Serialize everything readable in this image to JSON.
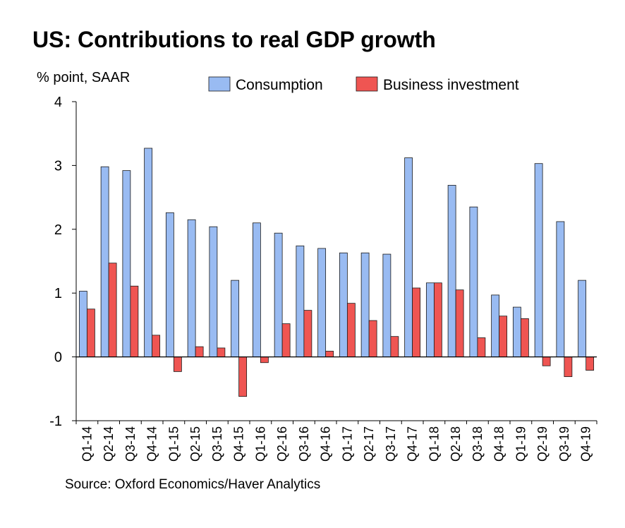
{
  "chart_data": {
    "type": "bar",
    "title": "US: Contributions to real GDP growth",
    "ylabel": "% point, SAAR",
    "source": "Source: Oxford Economics/Haver Analytics",
    "ylim": [
      -1,
      4
    ],
    "yticks": [
      -1,
      0,
      1,
      2,
      3,
      4
    ],
    "grid": false,
    "legend_position": "top",
    "categories": [
      "Q1-14",
      "Q2-14",
      "Q3-14",
      "Q4-14",
      "Q1-15",
      "Q2-15",
      "Q3-15",
      "Q4-15",
      "Q1-16",
      "Q2-16",
      "Q3-16",
      "Q4-16",
      "Q1-17",
      "Q2-17",
      "Q3-17",
      "Q4-17",
      "Q1-18",
      "Q2-18",
      "Q3-18",
      "Q4-18",
      "Q1-19",
      "Q2-19",
      "Q3-19",
      "Q4-19"
    ],
    "series": [
      {
        "name": "Consumption",
        "color": "#99bbf2",
        "values": [
          1.03,
          2.98,
          2.92,
          3.27,
          2.26,
          2.15,
          2.04,
          1.2,
          2.1,
          1.94,
          1.74,
          1.7,
          1.63,
          1.63,
          1.61,
          3.12,
          1.16,
          2.69,
          2.35,
          0.97,
          0.78,
          3.03,
          2.12,
          1.2
        ]
      },
      {
        "name": "Business investment",
        "color": "#ef5552",
        "values": [
          0.75,
          1.47,
          1.11,
          0.34,
          -0.23,
          0.16,
          0.14,
          -0.62,
          -0.09,
          0.52,
          0.73,
          0.09,
          0.84,
          0.57,
          0.32,
          1.08,
          1.16,
          1.05,
          0.3,
          0.64,
          0.6,
          -0.14,
          -0.31,
          -0.21
        ]
      }
    ]
  }
}
